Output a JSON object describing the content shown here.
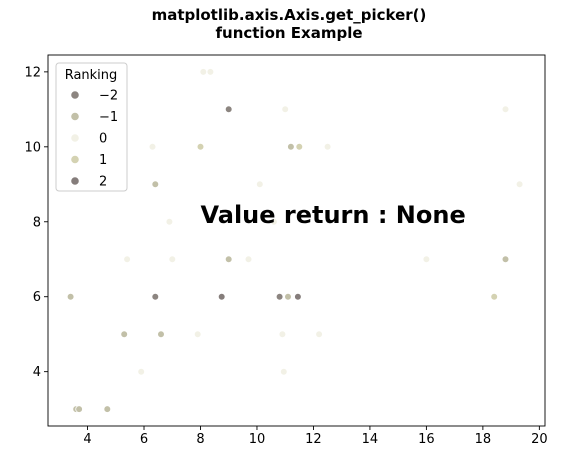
{
  "chart_data": {
    "type": "scatter",
    "title_line1": "matplotlib.axis.Axis.get_picker()",
    "title_line2": "function Example",
    "xlabel": "",
    "ylabel": "",
    "xlim": [
      2.6,
      20.2
    ],
    "ylim": [
      2.55,
      12.45
    ],
    "xticks": [
      4,
      6,
      8,
      10,
      12,
      14,
      16,
      18,
      20
    ],
    "yticks": [
      4,
      6,
      8,
      10,
      12
    ],
    "grid": false,
    "annotation": {
      "text": "Value return : None",
      "x": 8.0,
      "y": 8.0
    },
    "legend": {
      "title": "Ranking",
      "placement": "top-left",
      "entries": [
        {
          "label": "−2",
          "value": -2,
          "color": "#8c8580"
        },
        {
          "label": "−1",
          "value": -1,
          "color": "#c2c0a8"
        },
        {
          "label": "0",
          "value": 0,
          "color": "#f2f1e6"
        },
        {
          "label": "1",
          "value": 1,
          "color": "#d4d2b2"
        },
        {
          "label": "2",
          "value": 2,
          "color": "#857d7b"
        }
      ]
    },
    "points": [
      {
        "x": 3.4,
        "y": 6.0,
        "r": -1
      },
      {
        "x": 3.6,
        "y": 3.0,
        "r": -1
      },
      {
        "x": 3.7,
        "y": 3.0,
        "r": -1
      },
      {
        "x": 4.7,
        "y": 3.0,
        "r": -1
      },
      {
        "x": 5.3,
        "y": 5.0,
        "r": -1
      },
      {
        "x": 5.4,
        "y": 7.0,
        "r": 0
      },
      {
        "x": 5.9,
        "y": 4.0,
        "r": 0
      },
      {
        "x": 6.3,
        "y": 10.0,
        "r": 0
      },
      {
        "x": 6.4,
        "y": 6.0,
        "r": -2
      },
      {
        "x": 6.4,
        "y": 9.0,
        "r": -1
      },
      {
        "x": 6.6,
        "y": 5.0,
        "r": -1
      },
      {
        "x": 6.9,
        "y": 8.0,
        "r": 0
      },
      {
        "x": 7.0,
        "y": 7.0,
        "r": 0
      },
      {
        "x": 7.9,
        "y": 5.0,
        "r": 0
      },
      {
        "x": 8.0,
        "y": 10.0,
        "r": 1
      },
      {
        "x": 8.1,
        "y": 12.0,
        "r": 0
      },
      {
        "x": 8.35,
        "y": 12.0,
        "r": 0
      },
      {
        "x": 8.75,
        "y": 6.0,
        "r": 2
      },
      {
        "x": 9.0,
        "y": 11.0,
        "r": -2
      },
      {
        "x": 9.0,
        "y": 7.0,
        "r": -1
      },
      {
        "x": 9.7,
        "y": 7.0,
        "r": 0
      },
      {
        "x": 10.1,
        "y": 9.0,
        "r": 0
      },
      {
        "x": 10.6,
        "y": 8.0,
        "r": 0
      },
      {
        "x": 10.8,
        "y": 6.0,
        "r": -2
      },
      {
        "x": 10.9,
        "y": 5.0,
        "r": 0
      },
      {
        "x": 10.95,
        "y": 4.0,
        "r": 0
      },
      {
        "x": 11.0,
        "y": 11.0,
        "r": 0
      },
      {
        "x": 11.1,
        "y": 6.0,
        "r": -1
      },
      {
        "x": 11.2,
        "y": 10.0,
        "r": -1
      },
      {
        "x": 11.45,
        "y": 6.0,
        "r": 2
      },
      {
        "x": 11.5,
        "y": 10.0,
        "r": 1
      },
      {
        "x": 12.2,
        "y": 5.0,
        "r": 0
      },
      {
        "x": 12.5,
        "y": 10.0,
        "r": 0
      },
      {
        "x": 16.0,
        "y": 7.0,
        "r": 0
      },
      {
        "x": 18.4,
        "y": 6.0,
        "r": 1
      },
      {
        "x": 18.8,
        "y": 11.0,
        "r": 0
      },
      {
        "x": 18.8,
        "y": 7.0,
        "r": -1
      },
      {
        "x": 19.3,
        "y": 9.0,
        "r": 0
      }
    ]
  }
}
